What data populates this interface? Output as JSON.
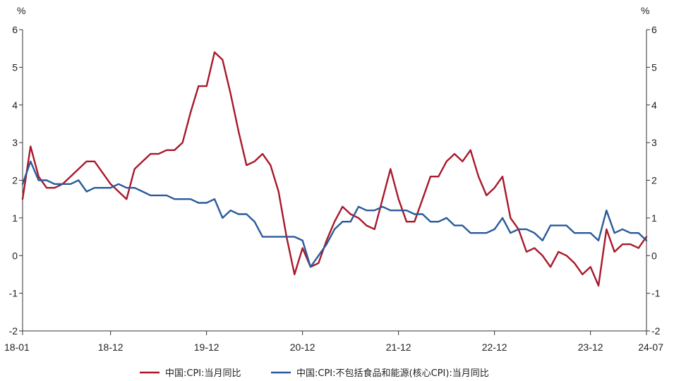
{
  "chart_data": {
    "type": "line",
    "title": "",
    "xlabel": "",
    "ylabel_left": "%",
    "ylabel_right": "%",
    "ylim": [
      -2,
      6
    ],
    "yticks": [
      -2,
      -1,
      0,
      1,
      2,
      3,
      4,
      5,
      6
    ],
    "xlim": [
      "18-01",
      "24-07"
    ],
    "x_tick_labels": [
      "18-01",
      "18-12",
      "19-12",
      "20-12",
      "21-12",
      "22-12",
      "23-12",
      "24-07"
    ],
    "grid": false,
    "legend_position": "bottom",
    "series": [
      {
        "name": "中国:CPI:当月同比",
        "color": "#a8182a",
        "points": [
          [
            "18-01",
            1.5
          ],
          [
            "18-02",
            2.9
          ],
          [
            "18-03",
            2.1
          ],
          [
            "18-04",
            1.8
          ],
          [
            "18-05",
            1.8
          ],
          [
            "18-06",
            1.9
          ],
          [
            "18-07",
            2.1
          ],
          [
            "18-08",
            2.3
          ],
          [
            "18-09",
            2.5
          ],
          [
            "18-10",
            2.5
          ],
          [
            "18-11",
            2.2
          ],
          [
            "18-12",
            1.9
          ],
          [
            "19-01",
            1.7
          ],
          [
            "19-02",
            1.5
          ],
          [
            "19-03",
            2.3
          ],
          [
            "19-04",
            2.5
          ],
          [
            "19-05",
            2.7
          ],
          [
            "19-06",
            2.7
          ],
          [
            "19-07",
            2.8
          ],
          [
            "19-08",
            2.8
          ],
          [
            "19-09",
            3.0
          ],
          [
            "19-10",
            3.8
          ],
          [
            "19-11",
            4.5
          ],
          [
            "19-12",
            4.5
          ],
          [
            "20-01",
            5.4
          ],
          [
            "20-02",
            5.2
          ],
          [
            "20-03",
            4.3
          ],
          [
            "20-04",
            3.3
          ],
          [
            "20-05",
            2.4
          ],
          [
            "20-06",
            2.5
          ],
          [
            "20-07",
            2.7
          ],
          [
            "20-08",
            2.4
          ],
          [
            "20-09",
            1.7
          ],
          [
            "20-10",
            0.5
          ],
          [
            "20-11",
            -0.5
          ],
          [
            "20-12",
            0.2
          ],
          [
            "21-01",
            -0.3
          ],
          [
            "21-02",
            -0.2
          ],
          [
            "21-03",
            0.4
          ],
          [
            "21-04",
            0.9
          ],
          [
            "21-05",
            1.3
          ],
          [
            "21-06",
            1.1
          ],
          [
            "21-07",
            1.0
          ],
          [
            "21-08",
            0.8
          ],
          [
            "21-09",
            0.7
          ],
          [
            "21-10",
            1.5
          ],
          [
            "21-11",
            2.3
          ],
          [
            "21-12",
            1.5
          ],
          [
            "22-01",
            0.9
          ],
          [
            "22-02",
            0.9
          ],
          [
            "22-03",
            1.5
          ],
          [
            "22-04",
            2.1
          ],
          [
            "22-05",
            2.1
          ],
          [
            "22-06",
            2.5
          ],
          [
            "22-07",
            2.7
          ],
          [
            "22-08",
            2.5
          ],
          [
            "22-09",
            2.8
          ],
          [
            "22-10",
            2.1
          ],
          [
            "22-11",
            1.6
          ],
          [
            "22-12",
            1.8
          ],
          [
            "23-01",
            2.1
          ],
          [
            "23-02",
            1.0
          ],
          [
            "23-03",
            0.7
          ],
          [
            "23-04",
            0.1
          ],
          [
            "23-05",
            0.2
          ],
          [
            "23-06",
            0.0
          ],
          [
            "23-07",
            -0.3
          ],
          [
            "23-08",
            0.1
          ],
          [
            "23-09",
            0.0
          ],
          [
            "23-10",
            -0.2
          ],
          [
            "23-11",
            -0.5
          ],
          [
            "23-12",
            -0.3
          ],
          [
            "24-01",
            -0.8
          ],
          [
            "24-02",
            0.7
          ],
          [
            "24-03",
            0.1
          ],
          [
            "24-04",
            0.3
          ],
          [
            "24-05",
            0.3
          ],
          [
            "24-06",
            0.2
          ],
          [
            "24-07",
            0.5
          ]
        ]
      },
      {
        "name": "中国:CPI:不包括食品和能源(核心CPI):当月同比",
        "color": "#2a5a9a",
        "points": [
          [
            "18-01",
            1.9
          ],
          [
            "18-02",
            2.5
          ],
          [
            "18-03",
            2.0
          ],
          [
            "18-04",
            2.0
          ],
          [
            "18-05",
            1.9
          ],
          [
            "18-06",
            1.9
          ],
          [
            "18-07",
            1.9
          ],
          [
            "18-08",
            2.0
          ],
          [
            "18-09",
            1.7
          ],
          [
            "18-10",
            1.8
          ],
          [
            "18-11",
            1.8
          ],
          [
            "18-12",
            1.8
          ],
          [
            "19-01",
            1.9
          ],
          [
            "19-02",
            1.8
          ],
          [
            "19-03",
            1.8
          ],
          [
            "19-04",
            1.7
          ],
          [
            "19-05",
            1.6
          ],
          [
            "19-06",
            1.6
          ],
          [
            "19-07",
            1.6
          ],
          [
            "19-08",
            1.5
          ],
          [
            "19-09",
            1.5
          ],
          [
            "19-10",
            1.5
          ],
          [
            "19-11",
            1.4
          ],
          [
            "19-12",
            1.4
          ],
          [
            "20-01",
            1.5
          ],
          [
            "20-02",
            1.0
          ],
          [
            "20-03",
            1.2
          ],
          [
            "20-04",
            1.1
          ],
          [
            "20-05",
            1.1
          ],
          [
            "20-06",
            0.9
          ],
          [
            "20-07",
            0.5
          ],
          [
            "20-08",
            0.5
          ],
          [
            "20-09",
            0.5
          ],
          [
            "20-10",
            0.5
          ],
          [
            "20-11",
            0.5
          ],
          [
            "20-12",
            0.4
          ],
          [
            "21-01",
            -0.3
          ],
          [
            "21-02",
            0.0
          ],
          [
            "21-03",
            0.3
          ],
          [
            "21-04",
            0.7
          ],
          [
            "21-05",
            0.9
          ],
          [
            "21-06",
            0.9
          ],
          [
            "21-07",
            1.3
          ],
          [
            "21-08",
            1.2
          ],
          [
            "21-09",
            1.2
          ],
          [
            "21-10",
            1.3
          ],
          [
            "21-11",
            1.2
          ],
          [
            "21-12",
            1.2
          ],
          [
            "22-01",
            1.2
          ],
          [
            "22-02",
            1.1
          ],
          [
            "22-03",
            1.1
          ],
          [
            "22-04",
            0.9
          ],
          [
            "22-05",
            0.9
          ],
          [
            "22-06",
            1.0
          ],
          [
            "22-07",
            0.8
          ],
          [
            "22-08",
            0.8
          ],
          [
            "22-09",
            0.6
          ],
          [
            "22-10",
            0.6
          ],
          [
            "22-11",
            0.6
          ],
          [
            "22-12",
            0.7
          ],
          [
            "23-01",
            1.0
          ],
          [
            "23-02",
            0.6
          ],
          [
            "23-03",
            0.7
          ],
          [
            "23-04",
            0.7
          ],
          [
            "23-05",
            0.6
          ],
          [
            "23-06",
            0.4
          ],
          [
            "23-07",
            0.8
          ],
          [
            "23-08",
            0.8
          ],
          [
            "23-09",
            0.8
          ],
          [
            "23-10",
            0.6
          ],
          [
            "23-11",
            0.6
          ],
          [
            "23-12",
            0.6
          ],
          [
            "24-01",
            0.4
          ],
          [
            "24-02",
            1.2
          ],
          [
            "24-03",
            0.6
          ],
          [
            "24-04",
            0.7
          ],
          [
            "24-05",
            0.6
          ],
          [
            "24-06",
            0.6
          ],
          [
            "24-07",
            0.4
          ]
        ]
      }
    ]
  }
}
